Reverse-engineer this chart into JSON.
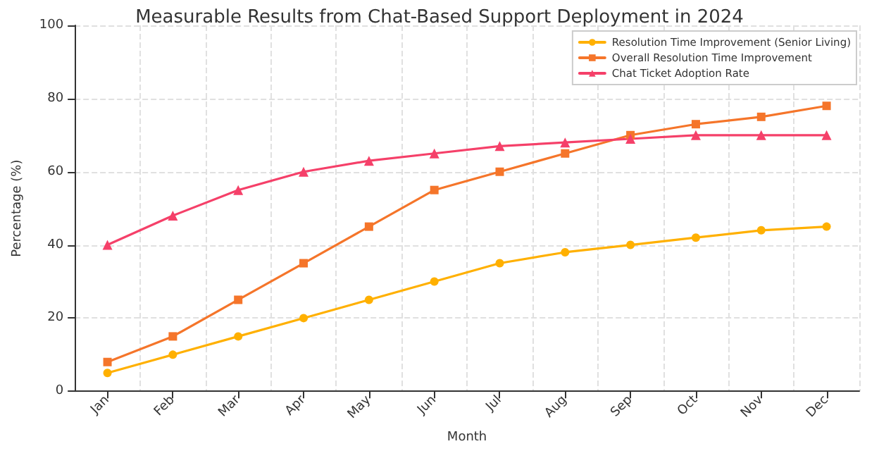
{
  "chart_data": {
    "type": "line",
    "title": "Measurable Results from Chat-Based Support Deployment in 2024",
    "xlabel": "Month",
    "ylabel": "Percentage (%)",
    "categories": [
      "Jan",
      "Feb",
      "Mar",
      "Apr",
      "May",
      "Jun",
      "Jul",
      "Aug",
      "Sep",
      "Oct",
      "Nov",
      "Dec"
    ],
    "series": [
      {
        "name": "Resolution Time Improvement (Senior Living)",
        "color": "#ffb000",
        "marker": "circle",
        "values": [
          5,
          10,
          15,
          20,
          25,
          30,
          35,
          38,
          40,
          42,
          44,
          45
        ]
      },
      {
        "name": "Overall Resolution Time Improvement",
        "color": "#f5752a",
        "marker": "square",
        "values": [
          8,
          15,
          25,
          35,
          45,
          55,
          60,
          65,
          70,
          73,
          75,
          78
        ]
      },
      {
        "name": "Chat Ticket Adoption Rate",
        "color": "#f54069",
        "marker": "triangle",
        "values": [
          40,
          48,
          55,
          60,
          63,
          65,
          67,
          68,
          69,
          70,
          70,
          70
        ]
      }
    ],
    "ylim": [
      0,
      100
    ],
    "yticks": [
      0,
      20,
      40,
      60,
      80,
      100
    ],
    "grid": true,
    "legend": "top right",
    "line_style": "solid"
  }
}
